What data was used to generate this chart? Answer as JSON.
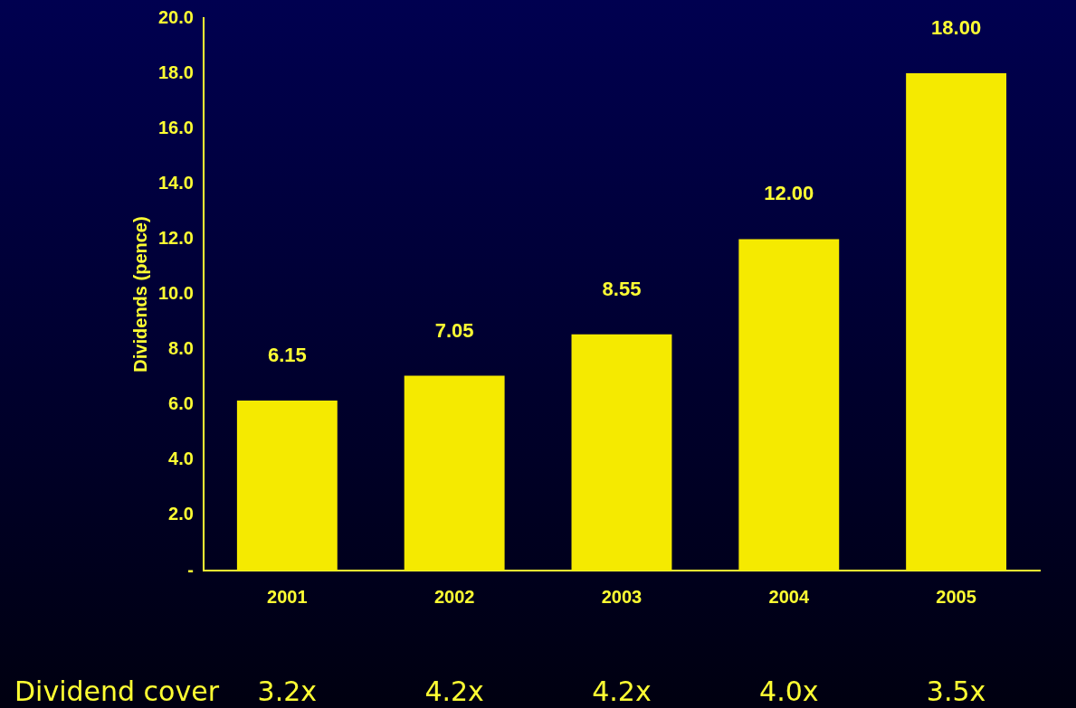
{
  "chart_data": {
    "type": "bar",
    "ylabel": "Dividends (pence)",
    "categories": [
      "2001",
      "2002",
      "2003",
      "2004",
      "2005"
    ],
    "values": [
      6.15,
      7.05,
      8.55,
      12,
      18
    ],
    "value_labels": [
      "6.15",
      "7.05",
      "8.55",
      "12.00",
      "18.00"
    ],
    "color": "#f5ea00",
    "ylim": [
      0,
      20
    ],
    "yticks": [
      {
        "value": 0,
        "label": "-"
      },
      {
        "value": 2,
        "label": "2.0"
      },
      {
        "value": 4,
        "label": "4.0"
      },
      {
        "value": 6,
        "label": "6.0"
      },
      {
        "value": 8,
        "label": "8.0"
      },
      {
        "value": 10,
        "label": "10.0"
      },
      {
        "value": 12,
        "label": "12.0"
      },
      {
        "value": 14,
        "label": "14.0"
      },
      {
        "value": 16,
        "label": "16.0"
      },
      {
        "value": 18,
        "label": "18.0"
      },
      {
        "value": 20,
        "label": "20.0"
      }
    ],
    "grid": false,
    "legend": false,
    "annotations": [
      "Dividend cover",
      "3.2x",
      "4.2x",
      "4.2x",
      "4.0x",
      "3.5x"
    ]
  }
}
